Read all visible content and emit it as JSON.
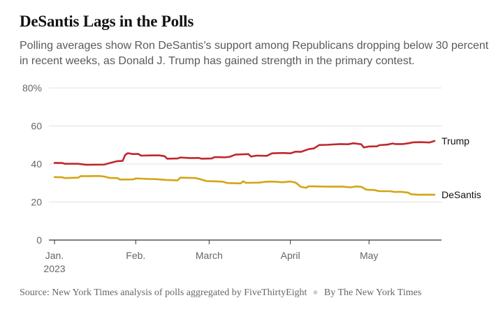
{
  "headline": "DeSantis Lags in the Polls",
  "subhead": "Polling averages show Ron DeSantis’s support among Republicans dropping below 30 percent in recent weeks, as Donald J. Trump has gained strength in the primary contest.",
  "source": "Source: New York Times analysis of polls aggregated by FiveThirtyEight",
  "byline": "By The New York Times",
  "colors": {
    "trump": "#c0272d",
    "desantis": "#d4a514",
    "grid": "#e2e2e2",
    "axis": "#333333",
    "tick_text": "#666666"
  },
  "chart_data": {
    "type": "line",
    "title": "DeSantis Lags in the Polls",
    "xlabel": "",
    "ylabel": "",
    "x_range": [
      "2023-01-01",
      "2023-05-26"
    ],
    "ylim": [
      0,
      80
    ],
    "yticks": [
      {
        "value": 0,
        "label": "0"
      },
      {
        "value": 20,
        "label": "20"
      },
      {
        "value": 40,
        "label": "40"
      },
      {
        "value": 60,
        "label": "60"
      },
      {
        "value": 80,
        "label": "80%"
      }
    ],
    "xticks": [
      {
        "date": "2023-01-01",
        "label": "Jan.",
        "sublabel": "2023"
      },
      {
        "date": "2023-02-01",
        "label": "Feb.",
        "sublabel": ""
      },
      {
        "date": "2023-03-01",
        "label": "March",
        "sublabel": ""
      },
      {
        "date": "2023-04-01",
        "label": "April",
        "sublabel": ""
      },
      {
        "date": "2023-05-01",
        "label": "May",
        "sublabel": ""
      }
    ],
    "grid": true,
    "series": [
      {
        "name": "Trump",
        "color_key": "trump",
        "points": [
          [
            "2023-01-01",
            40.6
          ],
          [
            "2023-01-04",
            40.5
          ],
          [
            "2023-01-05",
            40.1
          ],
          [
            "2023-01-10",
            40.1
          ],
          [
            "2023-01-13",
            39.6
          ],
          [
            "2023-01-20",
            39.7
          ],
          [
            "2023-01-23",
            40.8
          ],
          [
            "2023-01-25",
            41.5
          ],
          [
            "2023-01-27",
            41.6
          ],
          [
            "2023-01-28",
            44.8
          ],
          [
            "2023-01-29",
            45.7
          ],
          [
            "2023-01-31",
            45.2
          ],
          [
            "2023-02-02",
            45.3
          ],
          [
            "2023-02-03",
            44.4
          ],
          [
            "2023-02-07",
            44.5
          ],
          [
            "2023-02-10",
            44.5
          ],
          [
            "2023-02-12",
            44.1
          ],
          [
            "2023-02-13",
            42.8
          ],
          [
            "2023-02-17",
            42.9
          ],
          [
            "2023-02-18",
            43.4
          ],
          [
            "2023-02-22",
            43.1
          ],
          [
            "2023-02-25",
            43.2
          ],
          [
            "2023-02-26",
            42.8
          ],
          [
            "2023-03-02",
            42.9
          ],
          [
            "2023-03-03",
            43.6
          ],
          [
            "2023-03-05",
            43.6
          ],
          [
            "2023-03-07",
            43.5
          ],
          [
            "2023-03-09",
            43.8
          ],
          [
            "2023-03-11",
            44.9
          ],
          [
            "2023-03-16",
            45.2
          ],
          [
            "2023-03-17",
            43.9
          ],
          [
            "2023-03-19",
            44.4
          ],
          [
            "2023-03-23",
            44.3
          ],
          [
            "2023-03-25",
            45.6
          ],
          [
            "2023-03-29",
            45.8
          ],
          [
            "2023-04-01",
            45.6
          ],
          [
            "2023-04-03",
            46.5
          ],
          [
            "2023-04-05",
            46.4
          ],
          [
            "2023-04-08",
            47.8
          ],
          [
            "2023-04-10",
            48.2
          ],
          [
            "2023-04-12",
            50.0
          ],
          [
            "2023-04-15",
            50.1
          ],
          [
            "2023-04-20",
            50.5
          ],
          [
            "2023-04-23",
            50.4
          ],
          [
            "2023-04-25",
            50.9
          ],
          [
            "2023-04-28",
            50.4
          ],
          [
            "2023-04-29",
            48.7
          ],
          [
            "2023-05-01",
            49.2
          ],
          [
            "2023-05-04",
            49.3
          ],
          [
            "2023-05-05",
            49.9
          ],
          [
            "2023-05-08",
            50.2
          ],
          [
            "2023-05-10",
            50.8
          ],
          [
            "2023-05-11",
            50.5
          ],
          [
            "2023-05-14",
            50.5
          ],
          [
            "2023-05-16",
            50.9
          ],
          [
            "2023-05-18",
            51.4
          ],
          [
            "2023-05-21",
            51.5
          ],
          [
            "2023-05-24",
            51.3
          ],
          [
            "2023-05-26",
            52.1
          ]
        ]
      },
      {
        "name": "DeSantis",
        "color_key": "desantis",
        "points": [
          [
            "2023-01-01",
            33.1
          ],
          [
            "2023-01-04",
            33.0
          ],
          [
            "2023-01-05",
            32.6
          ],
          [
            "2023-01-10",
            32.8
          ],
          [
            "2023-01-11",
            33.6
          ],
          [
            "2023-01-14",
            33.6
          ],
          [
            "2023-01-18",
            33.7
          ],
          [
            "2023-01-20",
            33.4
          ],
          [
            "2023-01-22",
            32.7
          ],
          [
            "2023-01-25",
            32.6
          ],
          [
            "2023-01-26",
            31.8
          ],
          [
            "2023-01-31",
            31.9
          ],
          [
            "2023-02-01",
            32.4
          ],
          [
            "2023-02-06",
            32.1
          ],
          [
            "2023-02-09",
            32.0
          ],
          [
            "2023-02-13",
            31.6
          ],
          [
            "2023-02-17",
            31.4
          ],
          [
            "2023-02-18",
            32.8
          ],
          [
            "2023-02-24",
            32.6
          ],
          [
            "2023-02-26",
            31.8
          ],
          [
            "2023-02-28",
            31.0
          ],
          [
            "2023-03-03",
            30.9
          ],
          [
            "2023-03-06",
            30.7
          ],
          [
            "2023-03-08",
            30.0
          ],
          [
            "2023-03-13",
            29.8
          ],
          [
            "2023-03-14",
            30.9
          ],
          [
            "2023-03-15",
            30.1
          ],
          [
            "2023-03-20",
            30.2
          ],
          [
            "2023-03-23",
            30.7
          ],
          [
            "2023-03-26",
            30.7
          ],
          [
            "2023-03-29",
            30.4
          ],
          [
            "2023-04-01",
            30.8
          ],
          [
            "2023-04-03",
            30.2
          ],
          [
            "2023-04-05",
            28.0
          ],
          [
            "2023-04-07",
            27.5
          ],
          [
            "2023-04-08",
            28.3
          ],
          [
            "2023-04-15",
            28.1
          ],
          [
            "2023-04-21",
            28.1
          ],
          [
            "2023-04-24",
            27.7
          ],
          [
            "2023-04-26",
            28.2
          ],
          [
            "2023-04-28",
            28.0
          ],
          [
            "2023-04-30",
            26.5
          ],
          [
            "2023-05-03",
            26.3
          ],
          [
            "2023-05-05",
            25.7
          ],
          [
            "2023-05-09",
            25.7
          ],
          [
            "2023-05-11",
            25.3
          ],
          [
            "2023-05-13",
            25.4
          ],
          [
            "2023-05-16",
            24.9
          ],
          [
            "2023-05-17",
            24.1
          ],
          [
            "2023-05-20",
            23.8
          ],
          [
            "2023-05-22",
            23.9
          ],
          [
            "2023-05-26",
            23.8
          ]
        ]
      }
    ]
  }
}
